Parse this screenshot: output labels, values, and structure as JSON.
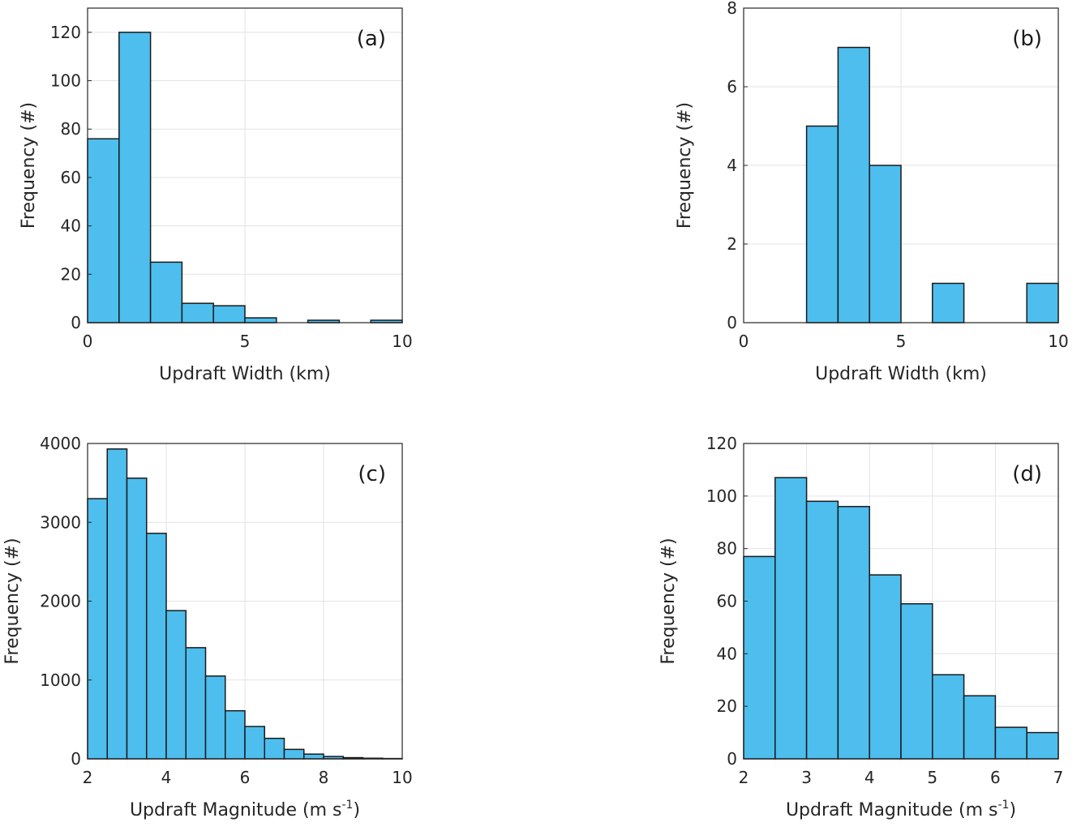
{
  "chart_data": [
    {
      "type": "bar",
      "panel_label": "(a)",
      "xlabel": "Updraft Width (km)",
      "ylabel": "Frequency (#)",
      "xlim": [
        0,
        10
      ],
      "ylim": [
        0,
        130
      ],
      "xticks": [
        0,
        5,
        10
      ],
      "yticks": [
        0,
        20,
        40,
        60,
        80,
        100,
        120
      ],
      "grid": true,
      "bin_edges": [
        0,
        1,
        2,
        3,
        4,
        5,
        6,
        7,
        8,
        9,
        10
      ],
      "values": [
        76,
        120,
        25,
        8,
        7,
        2,
        0,
        1,
        0,
        1
      ],
      "bar_color": "#4DBEEE"
    },
    {
      "type": "bar",
      "panel_label": "(b)",
      "xlabel": "Updraft Width (km)",
      "ylabel": "Frequency (#)",
      "xlim": [
        0,
        10
      ],
      "ylim": [
        0,
        8
      ],
      "xticks": [
        0,
        5,
        10
      ],
      "yticks": [
        0,
        2,
        4,
        6,
        8
      ],
      "grid": true,
      "bin_edges": [
        0,
        1,
        2,
        3,
        4,
        5,
        6,
        7,
        8,
        9,
        10
      ],
      "values": [
        0,
        0,
        5,
        7,
        4,
        0,
        1,
        0,
        0,
        1
      ],
      "bar_color": "#4DBEEE"
    },
    {
      "type": "bar",
      "panel_label": "(c)",
      "xlabel": "Updraft Magnitude (m s",
      "xlabel_sup": "-1",
      "xlabel_end": ")",
      "ylabel": "Frequency (#)",
      "xlim": [
        2,
        10
      ],
      "ylim": [
        0,
        4000
      ],
      "xticks": [
        2,
        4,
        6,
        8,
        10
      ],
      "yticks": [
        0,
        1000,
        2000,
        3000,
        4000
      ],
      "grid": true,
      "bin_edges": [
        2,
        2.5,
        3,
        3.5,
        4,
        4.5,
        5,
        5.5,
        6,
        6.5,
        7,
        7.5,
        8,
        8.5,
        9,
        9.5,
        10
      ],
      "values": [
        3300,
        3930,
        3560,
        2860,
        1880,
        1410,
        1050,
        610,
        410,
        260,
        120,
        60,
        30,
        15,
        8,
        4
      ],
      "bar_color": "#4DBEEE"
    },
    {
      "type": "bar",
      "panel_label": "(d)",
      "xlabel": "Updraft Magnitude (m s",
      "xlabel_sup": "-1",
      "xlabel_end": ")",
      "ylabel": "Frequency (#)",
      "xlim": [
        2,
        7
      ],
      "ylim": [
        0,
        120
      ],
      "xticks": [
        2,
        3,
        4,
        5,
        6,
        7
      ],
      "yticks": [
        0,
        20,
        40,
        60,
        80,
        100,
        120
      ],
      "grid": true,
      "bin_edges": [
        2,
        2.5,
        3,
        3.5,
        4,
        4.5,
        5,
        5.5,
        6,
        6.5,
        7
      ],
      "values": [
        77,
        107,
        98,
        96,
        70,
        59,
        32,
        24,
        12,
        10
      ],
      "bar_color": "#4DBEEE"
    }
  ]
}
